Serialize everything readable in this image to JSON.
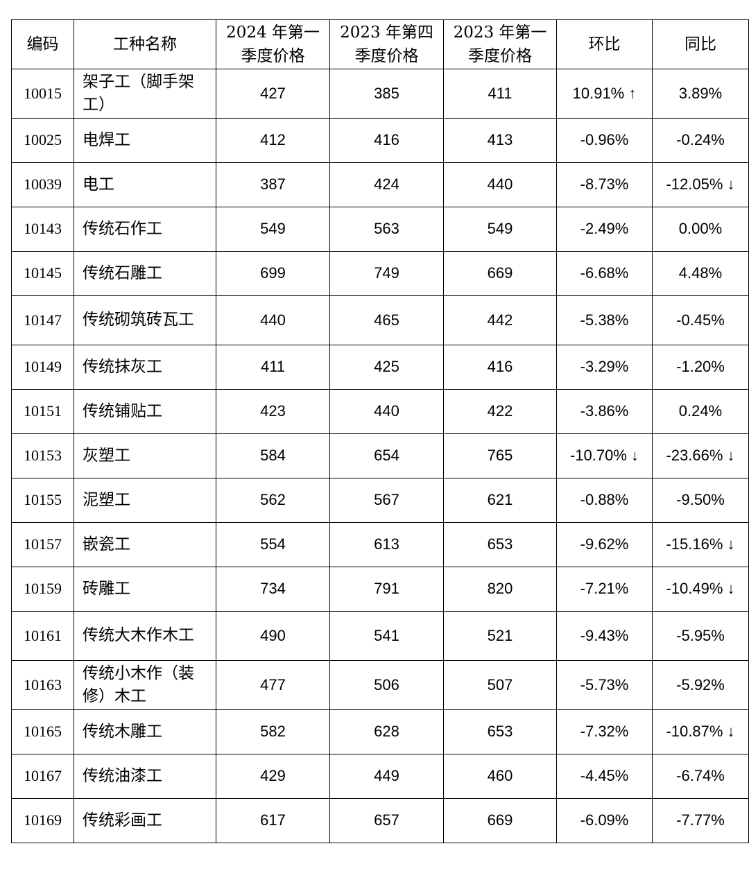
{
  "table": {
    "headers": {
      "code": "编码",
      "name": "工种名称",
      "q1_2024": "2024 年第一季度价格",
      "q4_2023": "2023 年第四季度价格",
      "q1_2023": "2023 年第一季度价格",
      "qoq": "环比",
      "yoy": "同比"
    },
    "colors": {
      "up": "#e5141e",
      "down": "#17a03c"
    },
    "rows": [
      {
        "code": "10015",
        "name": "架子工（脚手架工）",
        "q1_2024": "427",
        "q4_2023": "385",
        "q1_2023": "411",
        "qoq": "10.91% ↑",
        "yoy": "3.89%"
      },
      {
        "code": "10025",
        "name": "电焊工",
        "q1_2024": "412",
        "q4_2023": "416",
        "q1_2023": "413",
        "qoq": "-0.96%",
        "yoy": "-0.24%"
      },
      {
        "code": "10039",
        "name": "电工",
        "q1_2024": "387",
        "q4_2023": "424",
        "q1_2023": "440",
        "qoq": "-8.73%",
        "yoy": "-12.05% ↓"
      },
      {
        "code": "10143",
        "name": "传统石作工",
        "q1_2024": "549",
        "q4_2023": "563",
        "q1_2023": "549",
        "qoq": "-2.49%",
        "yoy": "0.00%"
      },
      {
        "code": "10145",
        "name": "传统石雕工",
        "q1_2024": "699",
        "q4_2023": "749",
        "q1_2023": "669",
        "qoq": "-6.68%",
        "yoy": "4.48%"
      },
      {
        "code": "10147",
        "name": "传统砌筑砖瓦工",
        "q1_2024": "440",
        "q4_2023": "465",
        "q1_2023": "442",
        "qoq": "-5.38%",
        "yoy": "-0.45%"
      },
      {
        "code": "10149",
        "name": "传统抹灰工",
        "q1_2024": "411",
        "q4_2023": "425",
        "q1_2023": "416",
        "qoq": "-3.29%",
        "yoy": "-1.20%"
      },
      {
        "code": "10151",
        "name": "传统铺贴工",
        "q1_2024": "423",
        "q4_2023": "440",
        "q1_2023": "422",
        "qoq": "-3.86%",
        "yoy": "0.24%"
      },
      {
        "code": "10153",
        "name": "灰塑工",
        "q1_2024": "584",
        "q4_2023": "654",
        "q1_2023": "765",
        "qoq": "-10.70% ↓",
        "yoy": "-23.66% ↓"
      },
      {
        "code": "10155",
        "name": "泥塑工",
        "q1_2024": "562",
        "q4_2023": "567",
        "q1_2023": "621",
        "qoq": "-0.88%",
        "yoy": "-9.50%"
      },
      {
        "code": "10157",
        "name": "嵌瓷工",
        "q1_2024": "554",
        "q4_2023": "613",
        "q1_2023": "653",
        "qoq": "-9.62%",
        "yoy": "-15.16% ↓"
      },
      {
        "code": "10159",
        "name": "砖雕工",
        "q1_2024": "734",
        "q4_2023": "791",
        "q1_2023": "820",
        "qoq": "-7.21%",
        "yoy": "-10.49% ↓"
      },
      {
        "code": "10161",
        "name": "传统大木作木工",
        "q1_2024": "490",
        "q4_2023": "541",
        "q1_2023": "521",
        "qoq": "-9.43%",
        "yoy": "-5.95%"
      },
      {
        "code": "10163",
        "name": "传统小木作（装修）木工",
        "q1_2024": "477",
        "q4_2023": "506",
        "q1_2023": "507",
        "qoq": "-5.73%",
        "yoy": "-5.92%"
      },
      {
        "code": "10165",
        "name": "传统木雕工",
        "q1_2024": "582",
        "q4_2023": "628",
        "q1_2023": "653",
        "qoq": "-7.32%",
        "yoy": "-10.87% ↓"
      },
      {
        "code": "10167",
        "name": "传统油漆工",
        "q1_2024": "429",
        "q4_2023": "449",
        "q1_2023": "460",
        "qoq": "-4.45%",
        "yoy": "-6.74%"
      },
      {
        "code": "10169",
        "name": "传统彩画工",
        "q1_2024": "617",
        "q4_2023": "657",
        "q1_2023": "669",
        "qoq": "-6.09%",
        "yoy": "-7.77%"
      }
    ]
  }
}
